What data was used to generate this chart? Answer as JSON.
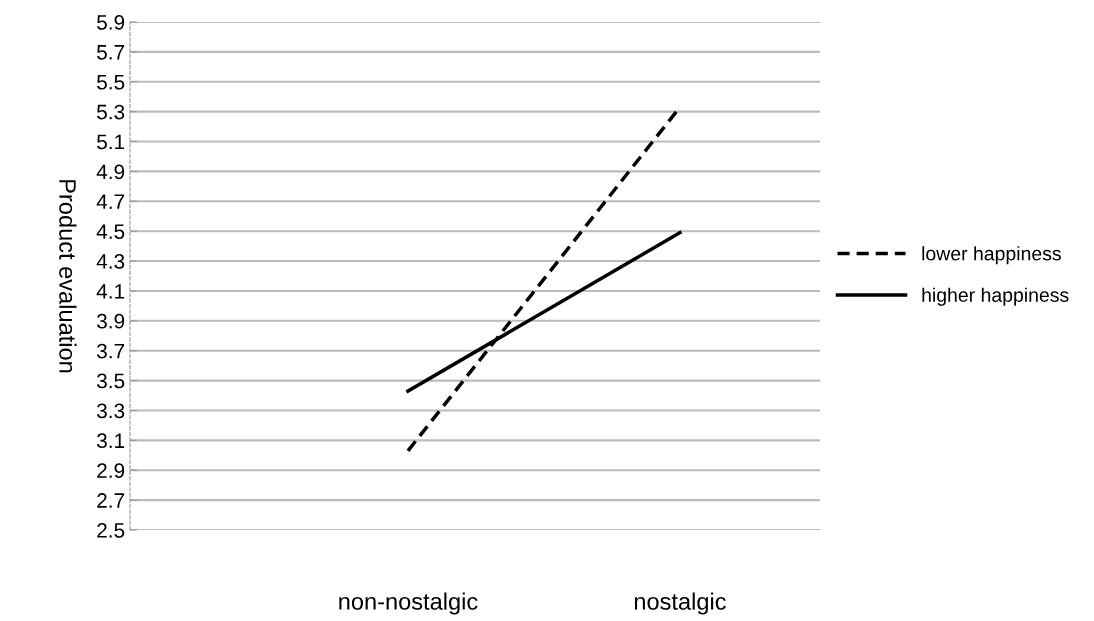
{
  "chart_data": {
    "type": "line",
    "ylabel": "Product evaluation",
    "categories": [
      "non-nostalgic",
      "nostalgic"
    ],
    "series": [
      {
        "name": "lower happiness",
        "color": "#000000",
        "values": [
          3.03,
          5.33
        ],
        "line_style": "dashed"
      },
      {
        "name": "higher happiness",
        "color": "#000000",
        "values": [
          3.43,
          4.49
        ],
        "line_style": "solid"
      }
    ],
    "ylim": [
      2.5,
      5.9
    ],
    "yticks": [
      2.5,
      2.7,
      2.9,
      3.1,
      3.3,
      3.5,
      3.7,
      3.9,
      4.1,
      4.3,
      4.5,
      4.7,
      4.9,
      5.1,
      5.3,
      5.5,
      5.7,
      5.9
    ],
    "grid": "y",
    "legend": "right",
    "marker": "none"
  }
}
